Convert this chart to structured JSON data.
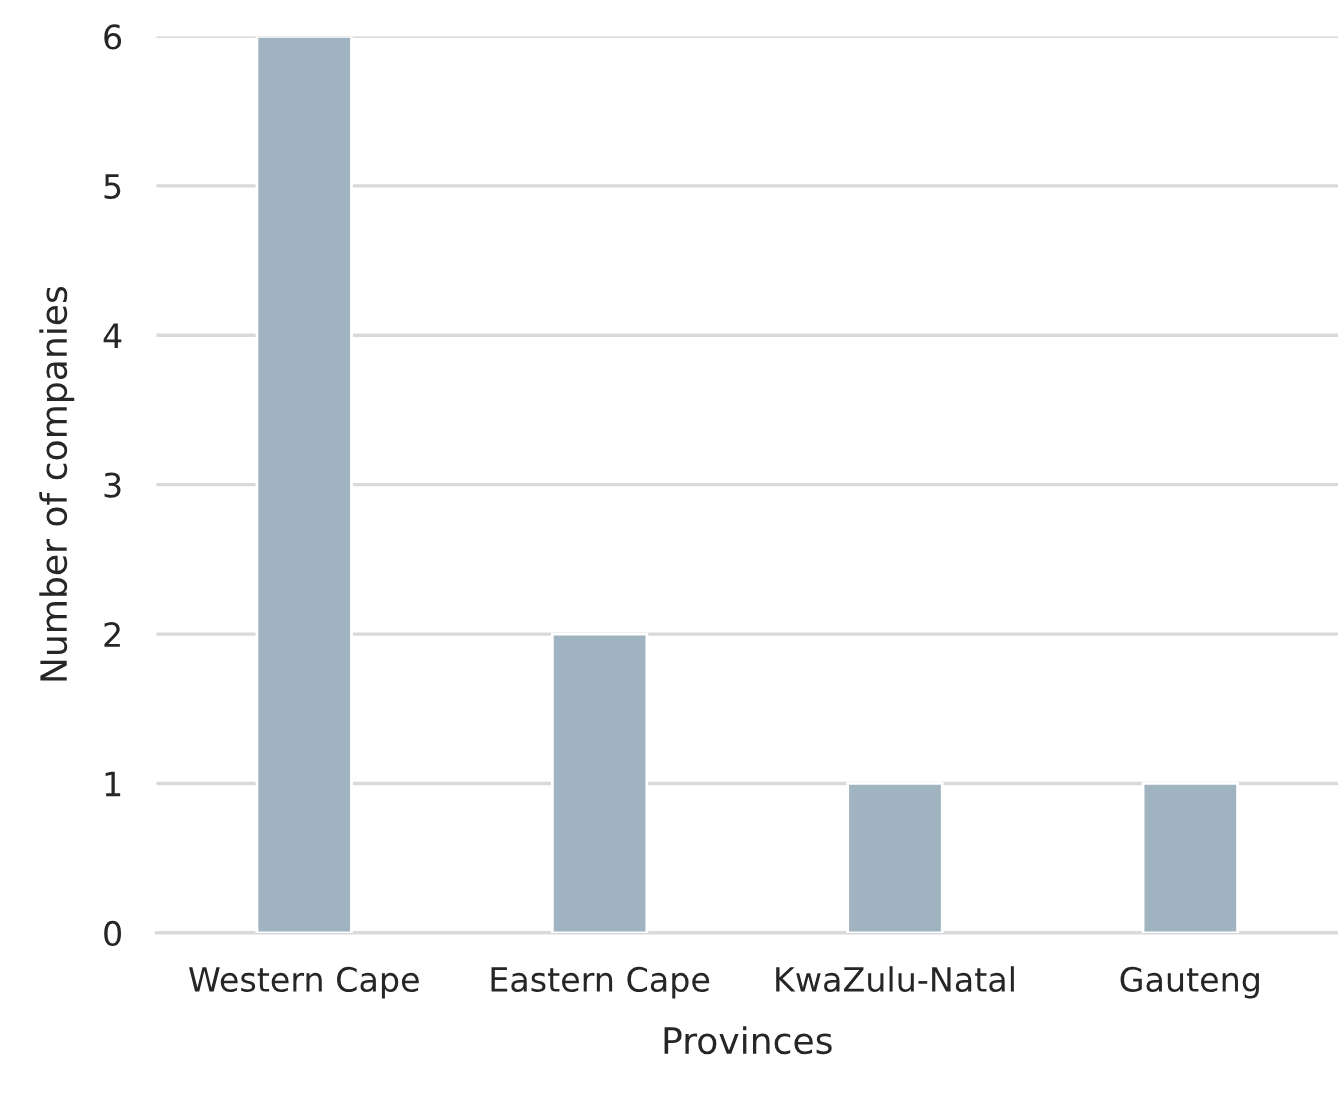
{
  "chart_data": {
    "type": "bar",
    "xlabel": "Provinces",
    "ylabel": "Number of companies",
    "categories": [
      "Western Cape",
      "Eastern Cape",
      "KwaZulu-Natal",
      "Gauteng"
    ],
    "values": [
      6,
      2,
      1,
      1
    ],
    "color": "#9fb3c0",
    "ylim": [
      0,
      6
    ],
    "yticks": [
      0,
      1,
      2,
      3,
      4,
      5,
      6
    ],
    "grid": "y",
    "legend": false
  }
}
